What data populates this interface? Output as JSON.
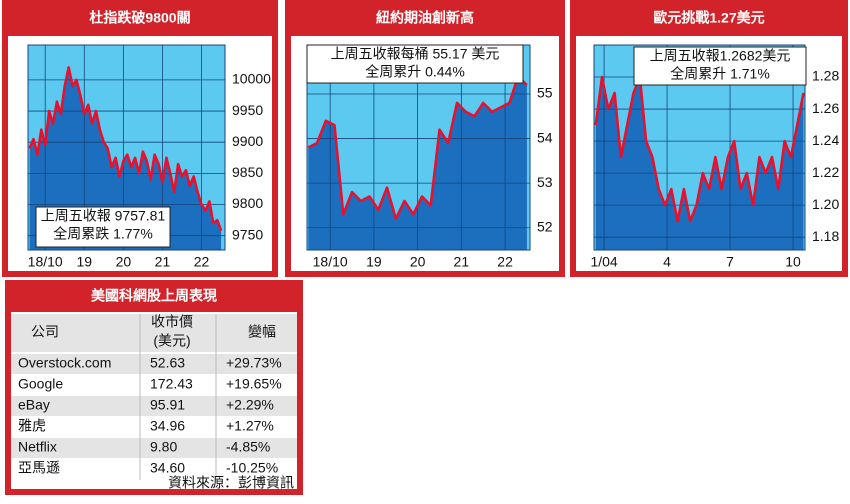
{
  "chart_data": [
    {
      "type": "line",
      "title": "杜指跌破9800關",
      "x": [
        17.6,
        17.7,
        17.8,
        17.9,
        18.0,
        18.1,
        18.2,
        18.3,
        18.4,
        18.5,
        18.6,
        18.7,
        18.8,
        18.9,
        19.0,
        19.1,
        19.2,
        19.3,
        19.4,
        19.5,
        19.6,
        19.7,
        19.8,
        19.9,
        20.0,
        20.1,
        20.2,
        20.3,
        20.4,
        20.5,
        20.6,
        20.7,
        20.8,
        20.9,
        21.0,
        21.1,
        21.2,
        21.3,
        21.4,
        21.5,
        21.6,
        21.7,
        21.8,
        21.9,
        22.0,
        22.1,
        22.2,
        22.3,
        22.4,
        22.5
      ],
      "series": [
        {
          "color": "#e8112d",
          "values": [
            9890,
            9905,
            9880,
            9920,
            9895,
            9950,
            9930,
            9965,
            9945,
            9990,
            10020,
            9990,
            10000,
            9975,
            9945,
            9960,
            9930,
            9950,
            9920,
            9900,
            9890,
            9860,
            9875,
            9845,
            9870,
            9880,
            9860,
            9875,
            9850,
            9885,
            9870,
            9840,
            9880,
            9865,
            9835,
            9875,
            9850,
            9820,
            9865,
            9845,
            9855,
            9830,
            9845,
            9820,
            9800,
            9790,
            9805,
            9770,
            9775,
            9758
          ]
        }
      ],
      "xlim": [
        17.56,
        22.6
      ],
      "xticks": [
        {
          "value": 18,
          "label": "18/10"
        },
        19,
        20,
        21,
        22
      ],
      "ylim": [
        9727,
        10056
      ],
      "yticks": [
        9750,
        9800,
        9850,
        9900,
        9950,
        10000
      ],
      "grid": true,
      "annotation": [
        "上周五收報 9757.81",
        "全周累跌 1.77%"
      ]
    },
    {
      "type": "line",
      "title": "紐約期油創新高",
      "x": [
        17.5,
        17.7,
        17.9,
        18.1,
        18.3,
        18.5,
        18.7,
        18.9,
        19.1,
        19.3,
        19.5,
        19.7,
        19.9,
        20.1,
        20.3,
        20.5,
        20.7,
        20.9,
        21.1,
        21.3,
        21.5,
        21.7,
        21.9,
        22.1,
        22.3,
        22.5
      ],
      "series": [
        {
          "color": "#e8112d",
          "values": [
            53.8,
            53.9,
            54.4,
            54.3,
            52.3,
            52.8,
            52.6,
            52.7,
            52.4,
            52.9,
            52.2,
            52.6,
            52.3,
            52.7,
            52.5,
            54.2,
            53.9,
            54.8,
            54.6,
            54.5,
            54.8,
            54.6,
            54.7,
            54.8,
            55.4,
            55.2
          ]
        }
      ],
      "xlim": [
        17.47,
        22.57
      ],
      "xticks": [
        {
          "value": 18,
          "label": "18/10"
        },
        19,
        20,
        21,
        22
      ],
      "ylim": [
        51.5,
        56.1
      ],
      "yticks": [
        52,
        53,
        54,
        55
      ],
      "grid": true,
      "annotation": [
        "上周五收報每桶 55.17 美元",
        "全周累升 0.44%"
      ]
    },
    {
      "type": "line",
      "title": "歐元挑戰1.27美元",
      "x": [
        0.6,
        0.9,
        1.2,
        1.5,
        1.8,
        2.1,
        2.4,
        2.7,
        3.0,
        3.3,
        3.6,
        3.9,
        4.2,
        4.5,
        4.8,
        5.1,
        5.4,
        5.7,
        6.0,
        6.3,
        6.6,
        6.9,
        7.2,
        7.5,
        7.8,
        8.1,
        8.4,
        8.7,
        9.0,
        9.3,
        9.6,
        9.9,
        10.2,
        10.5
      ],
      "series": [
        {
          "color": "#e8112d",
          "values": [
            1.25,
            1.28,
            1.26,
            1.27,
            1.23,
            1.25,
            1.27,
            1.28,
            1.24,
            1.23,
            1.21,
            1.2,
            1.21,
            1.19,
            1.21,
            1.19,
            1.2,
            1.22,
            1.21,
            1.23,
            1.21,
            1.23,
            1.24,
            1.21,
            1.22,
            1.2,
            1.23,
            1.22,
            1.23,
            1.21,
            1.24,
            1.23,
            1.25,
            1.27
          ]
        }
      ],
      "xlim": [
        0.52,
        10.57
      ],
      "xticks": [
        {
          "value": 1,
          "label": "1/04"
        },
        4,
        7,
        10
      ],
      "ylim": [
        1.172,
        1.3
      ],
      "yticks": [
        1.18,
        {
          "value": 1.2,
          "label": "1.20"
        },
        1.22,
        1.24,
        1.26,
        1.28
      ],
      "grid": true,
      "annotation": [
        "上周五收報1.2682美元",
        "全周累升 1.71%"
      ]
    }
  ],
  "table": {
    "title": "美國科網股上周表現",
    "header": [
      "公司",
      [
        "收市價",
        "(美元)"
      ],
      "變幅"
    ],
    "rows": [
      [
        "Overstock.com",
        "52.63",
        "+29.73%"
      ],
      [
        "Google",
        "172.43",
        "+19.65%"
      ],
      [
        "eBay",
        "95.91",
        "+2.29%"
      ],
      [
        "雅虎",
        "34.96",
        "+1.27%"
      ],
      [
        "Netflix",
        "9.80",
        "-4.85%"
      ],
      [
        "亞馬遜",
        "34.60",
        "-10.25%"
      ]
    ],
    "source": "資料來源：彭博資訊"
  }
}
